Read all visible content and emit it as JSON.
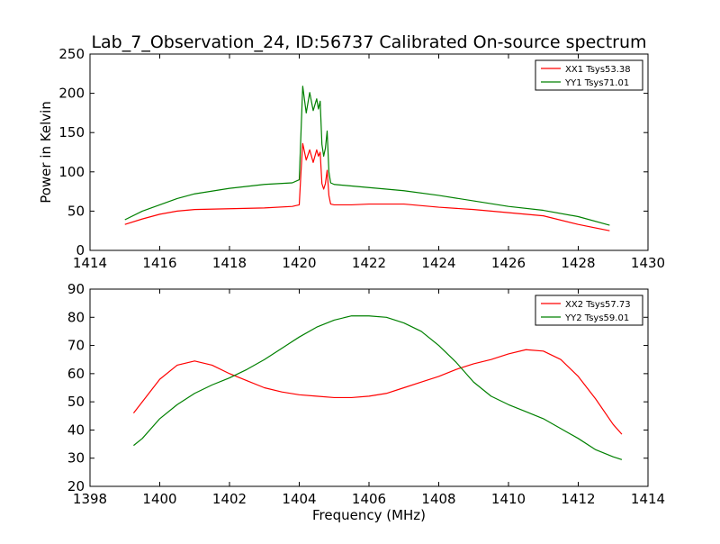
{
  "figure": {
    "title": "Lab_7_Observation_24, ID:56737 Calibrated On-source spectrum"
  },
  "chart_data": [
    {
      "type": "line",
      "ylabel": "Power in Kelvin",
      "xlabel": "",
      "xlim": [
        1414,
        1430
      ],
      "ylim": [
        0,
        250
      ],
      "xticks": [
        1414,
        1416,
        1418,
        1420,
        1422,
        1424,
        1426,
        1428,
        1430
      ],
      "yticks": [
        0,
        50,
        100,
        150,
        200,
        250
      ],
      "grid": false,
      "legend": "top-right",
      "series": [
        {
          "name": "XX1 Tsys53.38",
          "color": "#ff0000",
          "x": [
            1415.0,
            1415.5,
            1416.0,
            1416.5,
            1417.0,
            1418.0,
            1419.0,
            1419.8,
            1420.0,
            1420.05,
            1420.1,
            1420.2,
            1420.3,
            1420.4,
            1420.5,
            1420.55,
            1420.6,
            1420.65,
            1420.7,
            1420.75,
            1420.8,
            1420.85,
            1420.9,
            1421.0,
            1421.5,
            1422.0,
            1422.5,
            1423.0,
            1424.0,
            1425.0,
            1426.0,
            1427.0,
            1428.0,
            1428.9
          ],
          "values": [
            33,
            40,
            46,
            50,
            52,
            53,
            54,
            56,
            58,
            100,
            136,
            115,
            128,
            112,
            128,
            120,
            125,
            85,
            78,
            85,
            102,
            70,
            59,
            58,
            58,
            59,
            59,
            59,
            55,
            52,
            48,
            44,
            33,
            25
          ]
        },
        {
          "name": "YY1 Tsys71.01",
          "color": "#008000",
          "x": [
            1415.0,
            1415.5,
            1416.0,
            1416.5,
            1417.0,
            1418.0,
            1419.0,
            1419.8,
            1420.0,
            1420.05,
            1420.1,
            1420.2,
            1420.3,
            1420.4,
            1420.5,
            1420.55,
            1420.6,
            1420.65,
            1420.7,
            1420.75,
            1420.8,
            1420.85,
            1420.9,
            1421.0,
            1421.5,
            1422.0,
            1422.5,
            1423.0,
            1424.0,
            1425.0,
            1426.0,
            1427.0,
            1428.0,
            1428.9
          ],
          "values": [
            39,
            50,
            58,
            66,
            72,
            79,
            84,
            86,
            90,
            150,
            209,
            175,
            201,
            178,
            193,
            180,
            190,
            135,
            120,
            130,
            152,
            100,
            86,
            84,
            82,
            80,
            78,
            76,
            70,
            63,
            56,
            51,
            43,
            32
          ]
        }
      ]
    },
    {
      "type": "line",
      "xlabel": "Frequency (MHz)",
      "ylabel": "",
      "xlim": [
        1398,
        1414
      ],
      "ylim": [
        20,
        90
      ],
      "xticks": [
        1398,
        1400,
        1402,
        1404,
        1406,
        1408,
        1410,
        1412,
        1414
      ],
      "yticks": [
        20,
        30,
        40,
        50,
        60,
        70,
        80,
        90
      ],
      "grid": false,
      "legend": "top-right",
      "series": [
        {
          "name": "XX2 Tsys57.73",
          "color": "#ff0000",
          "x": [
            1399.25,
            1399.5,
            1400.0,
            1400.5,
            1401.0,
            1401.5,
            1402.0,
            1402.5,
            1403.0,
            1403.5,
            1404.0,
            1404.5,
            1405.0,
            1405.5,
            1406.0,
            1406.5,
            1407.0,
            1407.5,
            1408.0,
            1408.5,
            1409.0,
            1409.5,
            1410.0,
            1410.5,
            1411.0,
            1411.5,
            1412.0,
            1412.5,
            1413.0,
            1413.25
          ],
          "values": [
            46,
            50,
            58,
            63,
            64.5,
            63,
            60,
            57.5,
            55,
            53.5,
            52.5,
            52,
            51.5,
            51.5,
            52,
            53,
            55,
            57,
            59,
            61.5,
            63.5,
            65,
            67,
            68.5,
            68,
            65,
            59,
            51,
            42,
            38.5
          ]
        },
        {
          "name": "YY2 Tsys59.01",
          "color": "#008000",
          "x": [
            1399.25,
            1399.5,
            1400.0,
            1400.5,
            1401.0,
            1401.5,
            1402.0,
            1402.5,
            1403.0,
            1403.5,
            1404.0,
            1404.5,
            1405.0,
            1405.5,
            1406.0,
            1406.5,
            1407.0,
            1407.5,
            1408.0,
            1408.5,
            1409.0,
            1409.5,
            1410.0,
            1410.5,
            1411.0,
            1411.5,
            1412.0,
            1412.5,
            1413.0,
            1413.25
          ],
          "values": [
            34.5,
            37,
            44,
            49,
            53,
            56,
            58.5,
            61.5,
            65,
            69,
            73,
            76.5,
            79,
            80.5,
            80.5,
            80,
            78,
            75,
            70,
            64,
            57,
            52,
            49,
            46.5,
            44,
            40.5,
            37,
            33,
            30.5,
            29.5
          ]
        }
      ]
    }
  ]
}
